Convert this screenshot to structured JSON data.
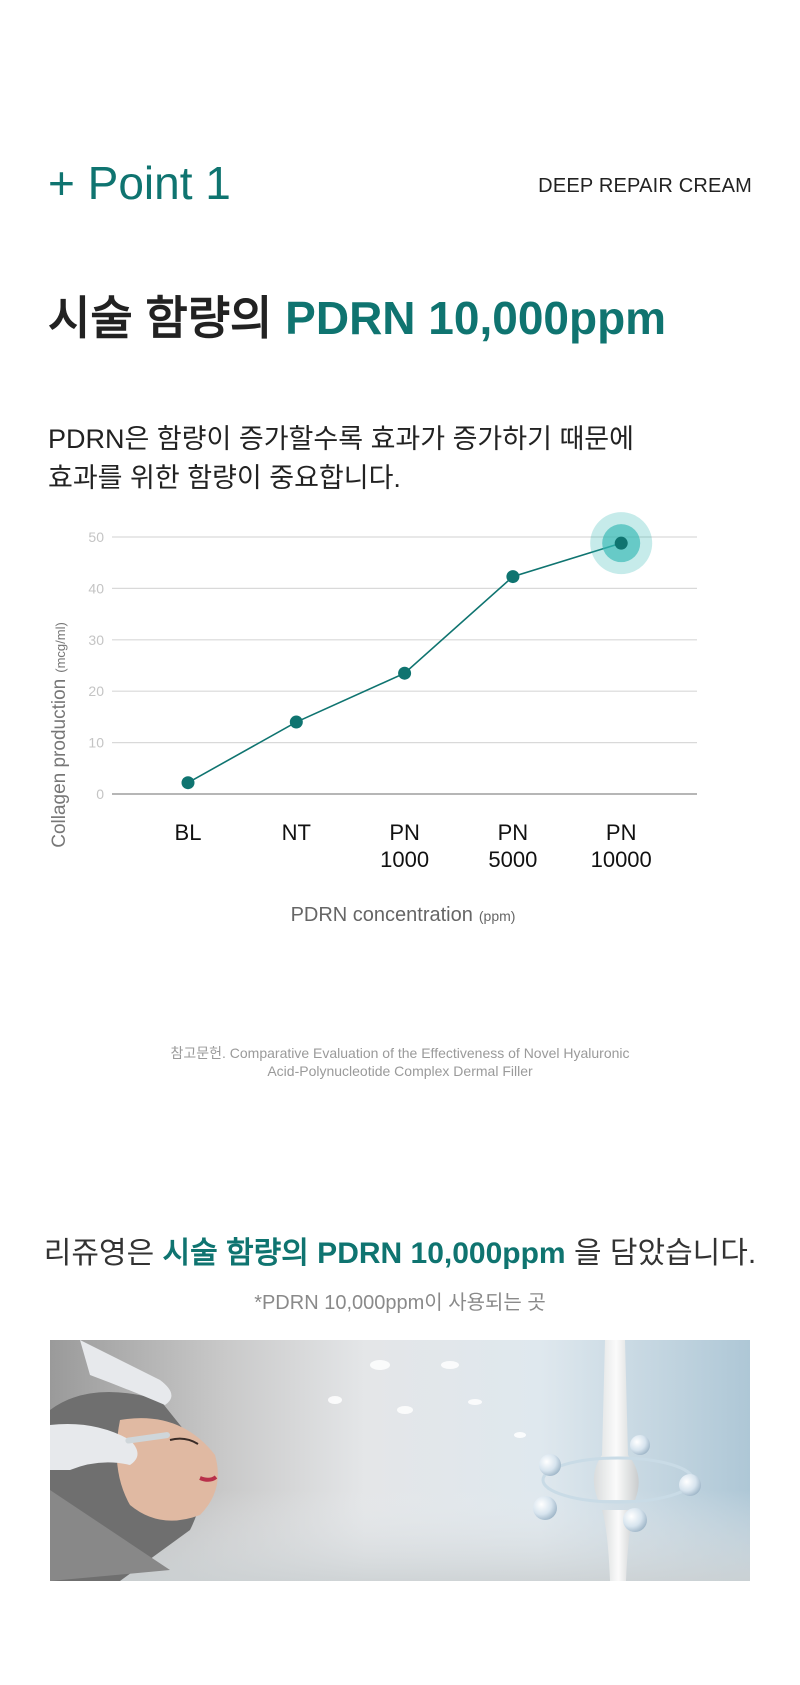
{
  "header": {
    "point_label": "+ Point 1",
    "product_name": "DEEP REPAIR CREAM"
  },
  "headline": {
    "prefix": "시술 함량의 ",
    "highlight": "PDRN 10,000ppm"
  },
  "description": {
    "line1": "PDRN은 함량이 증가할수록 효과가 증가하기 때문에",
    "line2": "효과를 위한 함량이 중요합니다."
  },
  "chart_data": {
    "type": "line",
    "title": "",
    "xlabel": "PDRN concentration",
    "xlabel_unit": "(ppm)",
    "ylabel": "Collagen production",
    "ylabel_unit": "(mcg/ml)",
    "ylim": [
      0,
      50
    ],
    "yticks": [
      0,
      10,
      20,
      30,
      40,
      50
    ],
    "categories": [
      [
        "BL"
      ],
      [
        "NT"
      ],
      [
        "PN",
        "1000"
      ],
      [
        "PN",
        "5000"
      ],
      [
        "PN",
        "10000"
      ]
    ],
    "values": [
      2.2,
      14,
      23.5,
      42.3,
      48.8
    ],
    "highlight_index": 4,
    "grid": true,
    "line_color": "#0f7470",
    "highlight_color": "#34b8b3"
  },
  "reference": {
    "line1": "참고문헌. Comparative Evaluation of the Effectiveness of Novel Hyaluronic",
    "line2": "Acid-Polynucleotide Complex Dermal Filler"
  },
  "summary": {
    "prefix": "리쥬영은 ",
    "highlight": "시술 함량의 PDRN 10,000ppm",
    "suffix": " 을 담았습니다."
  },
  "footnote": "*PDRN 10,000ppm이 사용되는 곳",
  "colors": {
    "accent": "#0f7470",
    "accent_light": "#34b8b3",
    "grid": "#d9d9d9",
    "axis_label": "#c4c4c4"
  }
}
